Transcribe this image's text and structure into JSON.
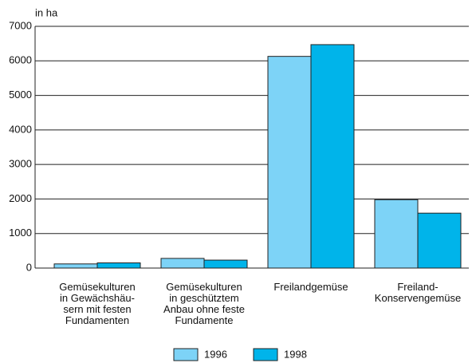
{
  "chart_data": {
    "type": "bar",
    "y_label": "in ha",
    "categories": [
      "Gemüsekulturen\nin Gewächshäu-\nsern mit festen\nFundamenten",
      "Gemüsekulturen\nin geschütztem\nAnbau ohne feste\nFundamente",
      "Freilandgemüse",
      "Freiland-\nKonservengemüse"
    ],
    "series": [
      {
        "name": "1996",
        "color": "#7dd3f7",
        "values": [
          120,
          280,
          6130,
          1980
        ]
      },
      {
        "name": "1998",
        "color": "#00b4ea",
        "values": [
          150,
          230,
          6470,
          1590
        ]
      }
    ],
    "ylim": [
      0,
      7000
    ],
    "yticks": [
      0,
      1000,
      2000,
      3000,
      4000,
      5000,
      6000,
      7000
    ],
    "grid": true,
    "legend": "bottom"
  }
}
